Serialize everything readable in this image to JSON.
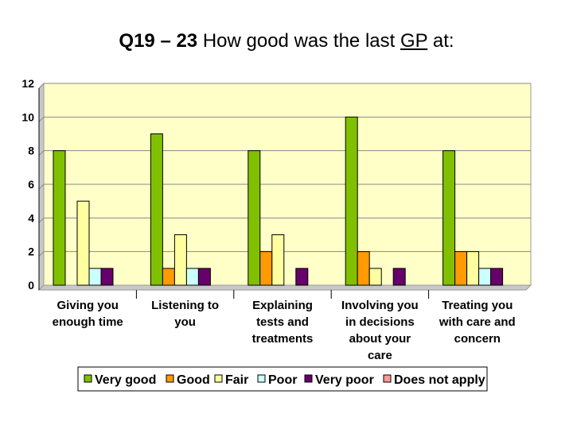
{
  "title": {
    "part1": "Q19 – 23",
    "part2": " How good was the last ",
    "part3": "GP",
    "part4": " at:"
  },
  "chart_data": {
    "type": "bar",
    "categories": [
      [
        "Giving you",
        "enough time"
      ],
      [
        "Listening to",
        "you"
      ],
      [
        "Explaining",
        "tests and",
        "treatments"
      ],
      [
        "Involving you",
        "in decisions",
        "about your",
        "care"
      ],
      [
        "Treating you",
        "with care and",
        "concern"
      ]
    ],
    "series": [
      {
        "name": "Very good",
        "color": "#80c000",
        "values": [
          8,
          9,
          8,
          10,
          8
        ]
      },
      {
        "name": "Good",
        "color": "#ff9a00",
        "values": [
          0,
          1,
          2,
          2,
          2
        ]
      },
      {
        "name": "Fair",
        "color": "#ffffa0",
        "values": [
          5,
          3,
          3,
          1,
          2
        ]
      },
      {
        "name": "Poor",
        "color": "#ccffff",
        "values": [
          1,
          1,
          0,
          0,
          1
        ]
      },
      {
        "name": "Very poor",
        "color": "#66006a",
        "values": [
          1,
          1,
          1,
          1,
          1
        ]
      },
      {
        "name": "Does not apply",
        "color": "#ff9999",
        "values": [
          0,
          0,
          0,
          0,
          0
        ]
      }
    ],
    "ylim": [
      0,
      12
    ],
    "yticks": [
      0,
      2,
      4,
      6,
      8,
      10,
      12
    ],
    "plot_background": "#ffffc8",
    "grid": true,
    "legend_position": "bottom"
  }
}
